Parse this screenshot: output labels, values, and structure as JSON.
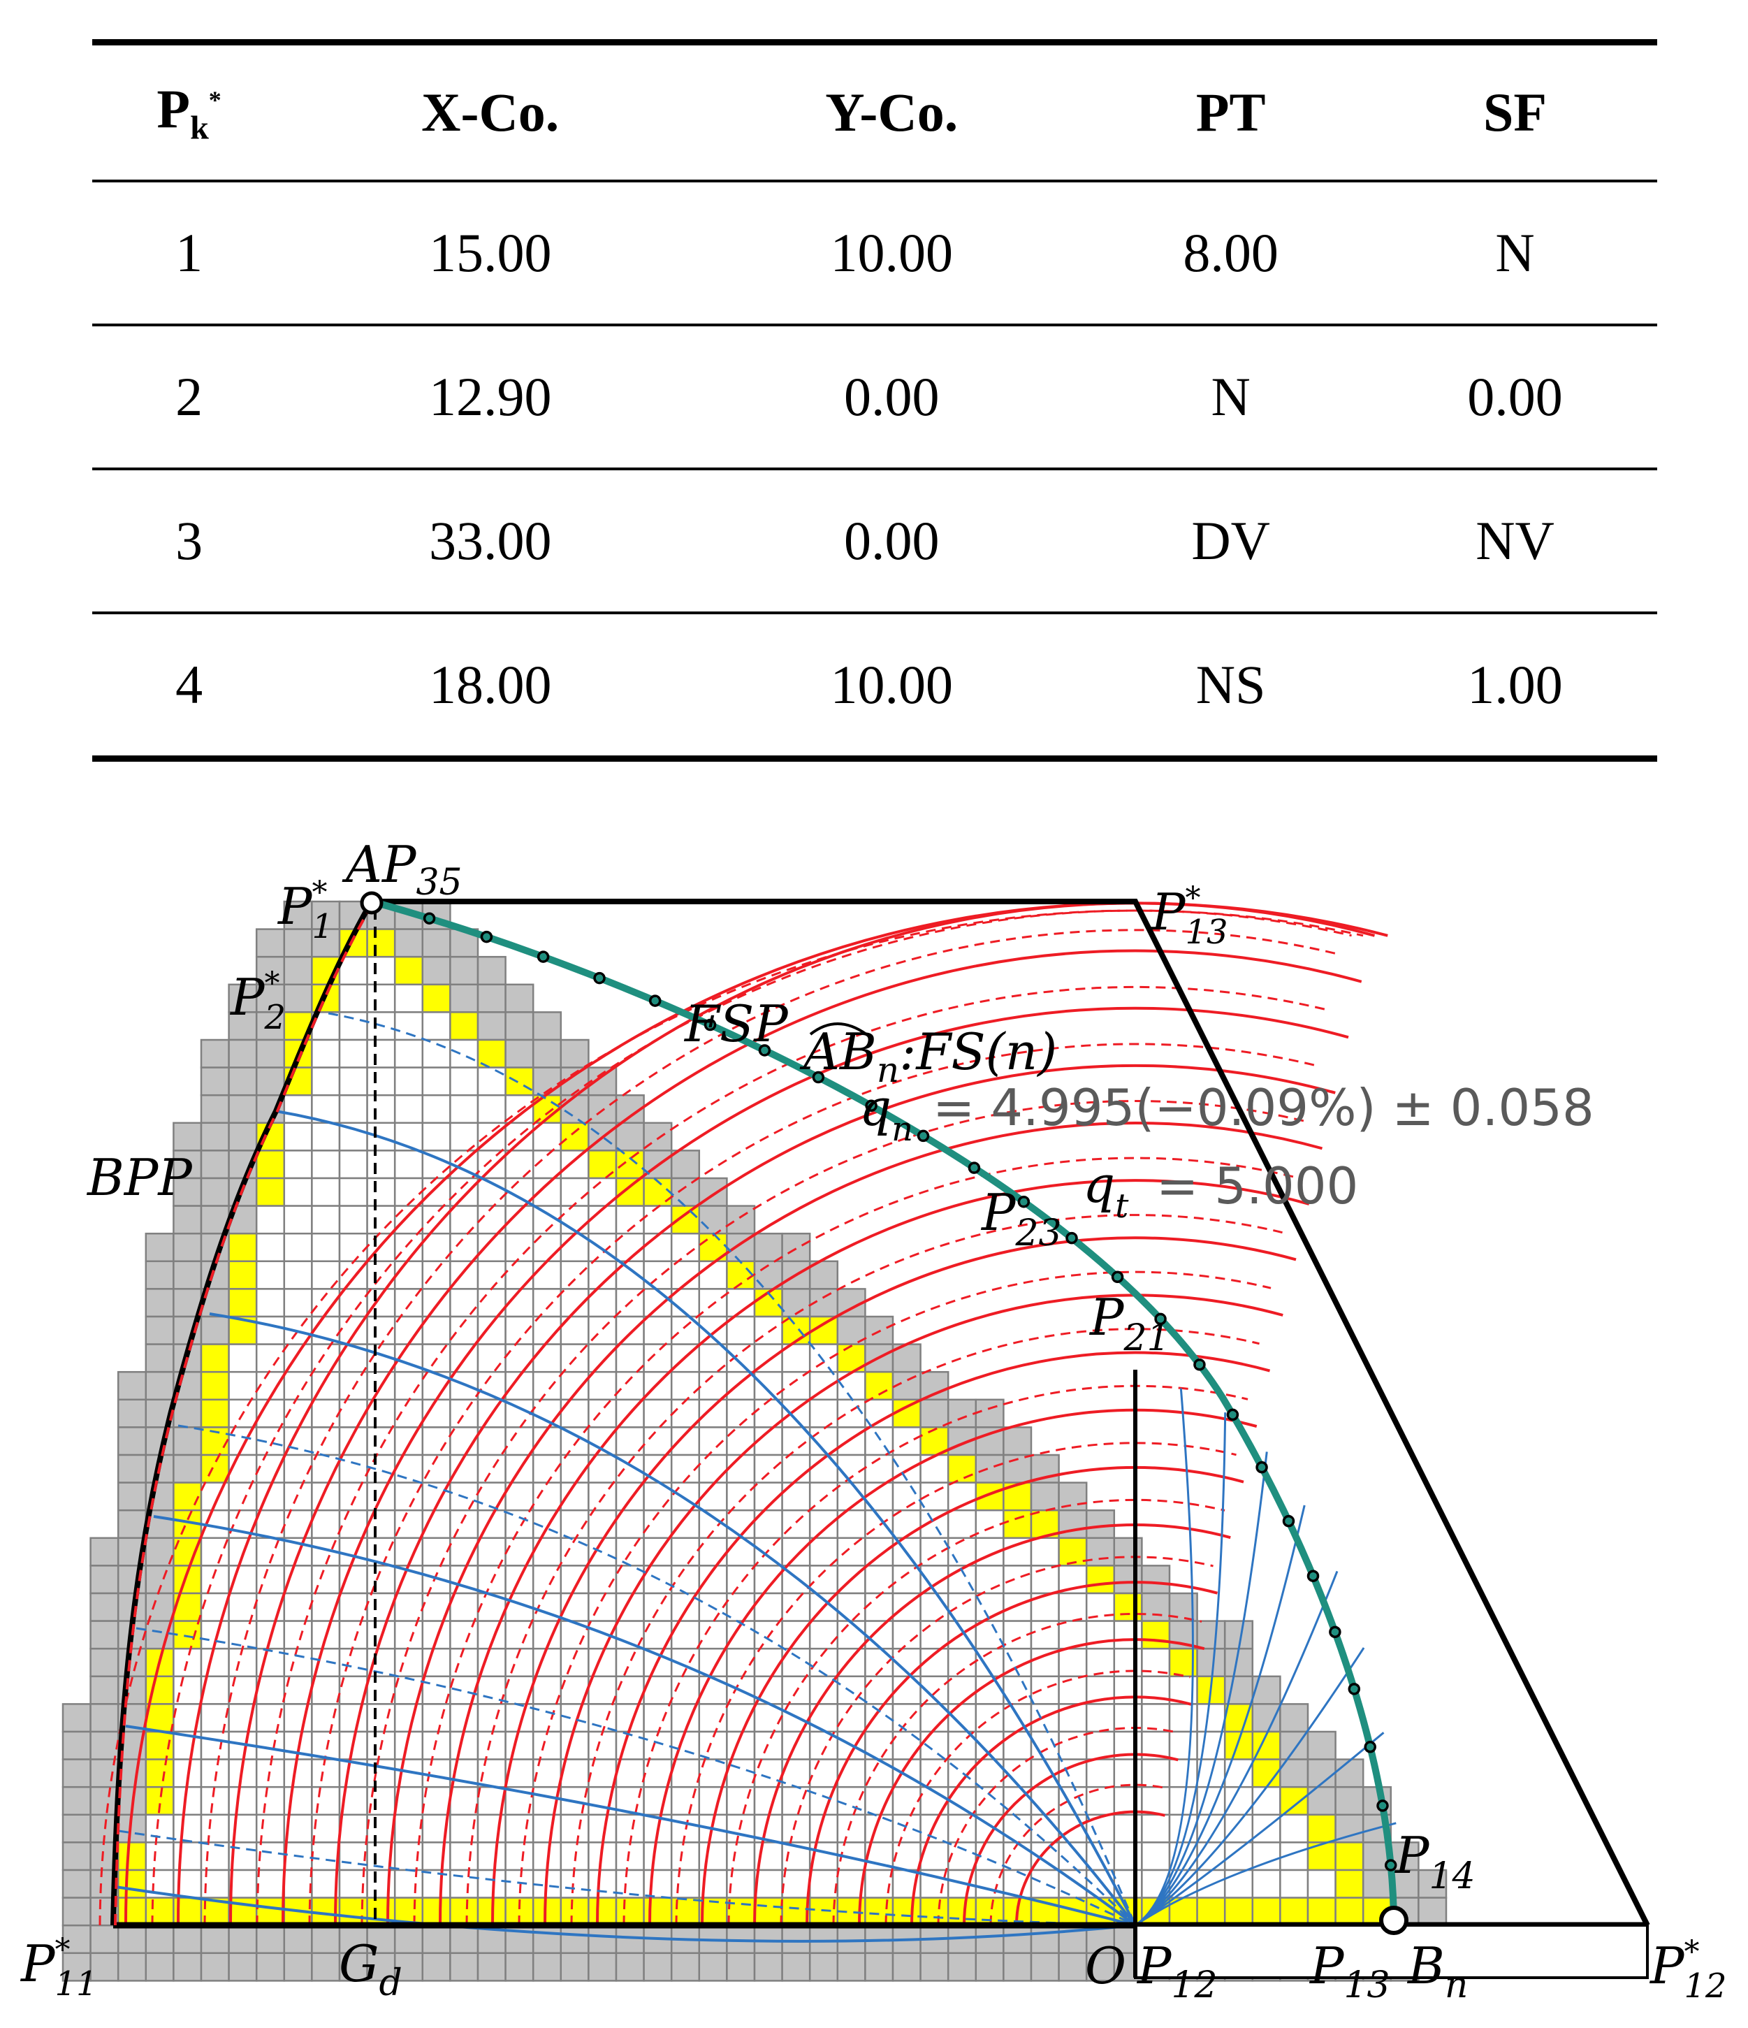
{
  "table": {
    "headers": [
      {
        "main": "P",
        "sub": "k",
        "sup": "*"
      },
      {
        "main": "X-Co."
      },
      {
        "main": "Y-Co."
      },
      {
        "main": "PT"
      },
      {
        "main": "SF"
      }
    ],
    "rows": [
      [
        "1",
        "15.00",
        "10.00",
        "8.00",
        "N"
      ],
      [
        "2",
        "12.90",
        "0.00",
        "N",
        "0.00"
      ],
      [
        "3",
        "33.00",
        "0.00",
        "DV",
        "NV"
      ],
      [
        "4",
        "18.00",
        "10.00",
        "NS",
        "1.00"
      ]
    ]
  },
  "figure": {
    "labels": {
      "ap35": {
        "main": "AP",
        "sub": "35"
      },
      "p1": {
        "main": "P",
        "sup": "*",
        "sub": "1"
      },
      "p2": {
        "main": "P",
        "sup": "*",
        "sub": "2"
      },
      "p13s": {
        "main": "P",
        "sup": "*",
        "sub": "13"
      },
      "fsp": "FSP",
      "bpp": "BPP",
      "arc_ab": "AB",
      "arc_sub": "n",
      "arc_fs": ":FS(n)",
      "qn_var": "q",
      "qn_sub": "n",
      "qn_value": "= 4.995(−0.09%) ± 0.058",
      "qt_var": "q",
      "qt_sub": "t",
      "qt_value": "= 5.000",
      "p23": {
        "main": "P",
        "sub": "23"
      },
      "p21": {
        "main": "P",
        "sub": "21"
      },
      "p14": {
        "main": "P",
        "sub": "14"
      },
      "p11": {
        "main": "P",
        "sup": "*",
        "sub": "11"
      },
      "gd": {
        "main": "G",
        "sub": "d"
      },
      "o": "O",
      "p12": {
        "main": "P",
        "sub": "12"
      },
      "p13b": {
        "main": "P",
        "sub": "13"
      },
      "bn": {
        "main": "B",
        "sub": "n"
      },
      "p12s": {
        "main": "P",
        "sup": "*",
        "sub": "12"
      }
    },
    "colors": {
      "grid_line": "#808080",
      "gray_cell": "#c3c3c3",
      "yellow_cell": "#ffff00",
      "outline": "#000000",
      "red_curve": "#ee1c24",
      "blue_curve": "#2e75c2",
      "surface_curve": "#1f8f7f"
    }
  }
}
